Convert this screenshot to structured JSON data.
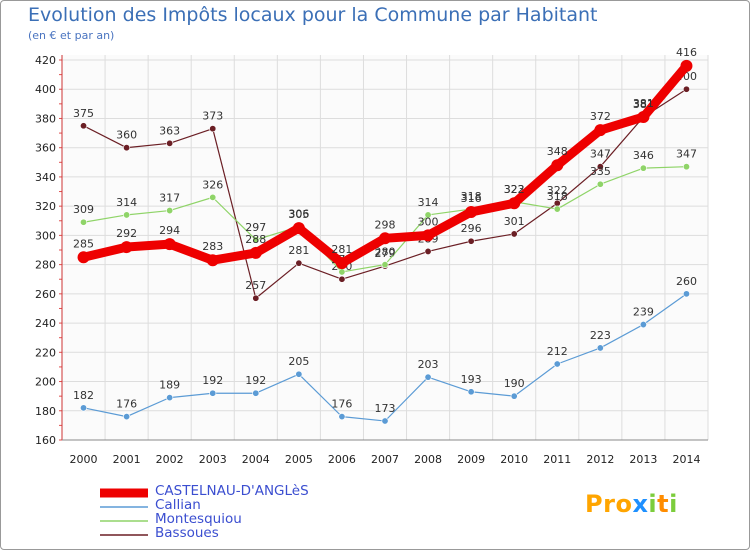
{
  "chart_data": {
    "type": "line",
    "title": "Evolution des Impôts locaux pour la Commune par Habitant",
    "subtitle": "(en € et par an)",
    "x": [
      "2000",
      "2001",
      "2002",
      "2003",
      "2004",
      "2005",
      "2006",
      "2007",
      "2008",
      "2009",
      "2010",
      "2011",
      "2012",
      "2013",
      "2014"
    ],
    "ylim": [
      160,
      420
    ],
    "yticks": [
      160,
      180,
      200,
      220,
      240,
      260,
      280,
      300,
      320,
      340,
      360,
      380,
      400,
      420
    ],
    "grid": true,
    "legend_position": "bottom-left",
    "series": [
      {
        "name": "Bassoues",
        "color": "#6b1f25",
        "values": [
          375,
          360,
          363,
          373,
          257,
          281,
          270,
          279,
          289,
          296,
          301,
          322,
          347,
          381,
          400
        ]
      },
      {
        "name": "Montesquiou",
        "color": "#8fd468",
        "values": [
          309,
          314,
          317,
          326,
          297,
          306,
          275,
          280,
          314,
          318,
          323,
          318,
          335,
          346,
          347
        ]
      },
      {
        "name": "Callian",
        "color": "#5b9bd5",
        "values": [
          182,
          176,
          189,
          192,
          192,
          205,
          176,
          173,
          203,
          193,
          190,
          212,
          223,
          239,
          260
        ]
      },
      {
        "name": "CASTELNAU-D'ANGLèS",
        "color": "#ee0000",
        "values": [
          285,
          292,
          294,
          283,
          288,
          305,
          281,
          298,
          300,
          316,
          322,
          348,
          372,
          381,
          416
        ]
      }
    ]
  },
  "legend_items": [
    {
      "name": "CASTELNAU-D'ANGLèS",
      "color": "#ee0000"
    },
    {
      "name": "Callian",
      "color": "#5b9bd5"
    },
    {
      "name": "Montesquiou",
      "color": "#8fd468"
    },
    {
      "name": "Bassoues",
      "color": "#6b1f25"
    }
  ],
  "logo": {
    "text": "Proxiti",
    "colors": [
      "#ffa500",
      "#ffa500",
      "#ffa500",
      "#1e90ff",
      "#7ccd3c",
      "#ff8c00",
      "#7ccd3c"
    ]
  }
}
